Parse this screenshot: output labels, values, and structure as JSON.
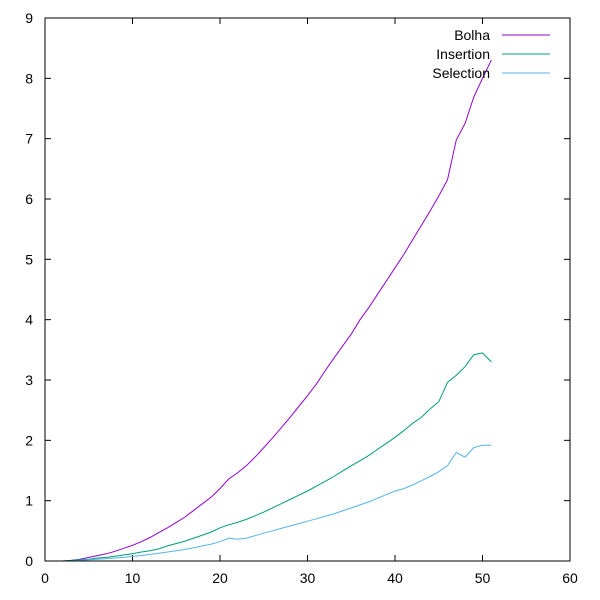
{
  "chart_data": {
    "type": "line",
    "xlim": [
      0,
      60
    ],
    "ylim": [
      0,
      9
    ],
    "xticks": [
      0,
      10,
      20,
      30,
      40,
      50,
      60
    ],
    "yticks": [
      0,
      1,
      2,
      3,
      4,
      5,
      6,
      7,
      8,
      9
    ],
    "grid": false,
    "legend": "top-right",
    "series": [
      {
        "name": "Bolha",
        "color": "#9400d3",
        "x": [
          2,
          3,
          4,
          5,
          6,
          7,
          8,
          9,
          10,
          11,
          12,
          13,
          14,
          15,
          16,
          17,
          18,
          19,
          20,
          21,
          22,
          23,
          24,
          25,
          26,
          27,
          28,
          29,
          30,
          31,
          32,
          33,
          34,
          35,
          36,
          37,
          38,
          39,
          40,
          41,
          42,
          43,
          44,
          45,
          46,
          47,
          48,
          49,
          50,
          51
        ],
        "y": [
          0.0,
          0.01,
          0.03,
          0.06,
          0.09,
          0.12,
          0.16,
          0.21,
          0.26,
          0.32,
          0.39,
          0.47,
          0.55,
          0.64,
          0.73,
          0.84,
          0.95,
          1.06,
          1.2,
          1.36,
          1.46,
          1.58,
          1.72,
          1.88,
          2.04,
          2.21,
          2.38,
          2.56,
          2.74,
          2.93,
          3.15,
          3.36,
          3.56,
          3.76,
          4.0,
          4.2,
          4.42,
          4.64,
          4.86,
          5.08,
          5.32,
          5.56,
          5.8,
          6.05,
          6.32,
          6.98,
          7.25,
          7.69,
          8.0,
          8.3
        ]
      },
      {
        "name": "Insertion",
        "color": "#009e73",
        "x": [
          2,
          3,
          4,
          5,
          6,
          7,
          8,
          9,
          10,
          11,
          12,
          13,
          14,
          15,
          16,
          17,
          18,
          19,
          20,
          21,
          22,
          23,
          24,
          25,
          26,
          27,
          28,
          29,
          30,
          31,
          32,
          33,
          34,
          35,
          36,
          37,
          38,
          39,
          40,
          41,
          42,
          43,
          44,
          45,
          46,
          47,
          48,
          49,
          50,
          51
        ],
        "y": [
          0.0,
          0.01,
          0.02,
          0.03,
          0.05,
          0.06,
          0.08,
          0.1,
          0.12,
          0.15,
          0.17,
          0.2,
          0.25,
          0.29,
          0.33,
          0.38,
          0.43,
          0.48,
          0.55,
          0.6,
          0.64,
          0.69,
          0.75,
          0.81,
          0.88,
          0.95,
          1.02,
          1.09,
          1.16,
          1.24,
          1.32,
          1.4,
          1.49,
          1.58,
          1.66,
          1.75,
          1.85,
          1.95,
          2.05,
          2.16,
          2.28,
          2.38,
          2.52,
          2.64,
          2.96,
          3.08,
          3.22,
          3.42,
          3.45,
          3.3
        ]
      },
      {
        "name": "Selection",
        "color": "#56b4e9",
        "x": [
          2,
          3,
          4,
          5,
          6,
          7,
          8,
          9,
          10,
          11,
          12,
          13,
          14,
          15,
          16,
          17,
          18,
          19,
          20,
          21,
          22,
          23,
          24,
          25,
          26,
          27,
          28,
          29,
          30,
          31,
          32,
          33,
          34,
          35,
          36,
          37,
          38,
          39,
          40,
          41,
          42,
          43,
          44,
          45,
          46,
          47,
          48,
          49,
          50,
          51
        ],
        "y": [
          0.0,
          0.0,
          0.01,
          0.02,
          0.03,
          0.04,
          0.05,
          0.06,
          0.08,
          0.09,
          0.11,
          0.13,
          0.15,
          0.17,
          0.19,
          0.22,
          0.25,
          0.28,
          0.32,
          0.38,
          0.36,
          0.38,
          0.42,
          0.46,
          0.5,
          0.54,
          0.58,
          0.62,
          0.66,
          0.7,
          0.74,
          0.78,
          0.83,
          0.88,
          0.93,
          0.98,
          1.04,
          1.1,
          1.16,
          1.2,
          1.26,
          1.33,
          1.4,
          1.48,
          1.58,
          1.8,
          1.72,
          1.88,
          1.92,
          1.92
        ]
      }
    ]
  }
}
